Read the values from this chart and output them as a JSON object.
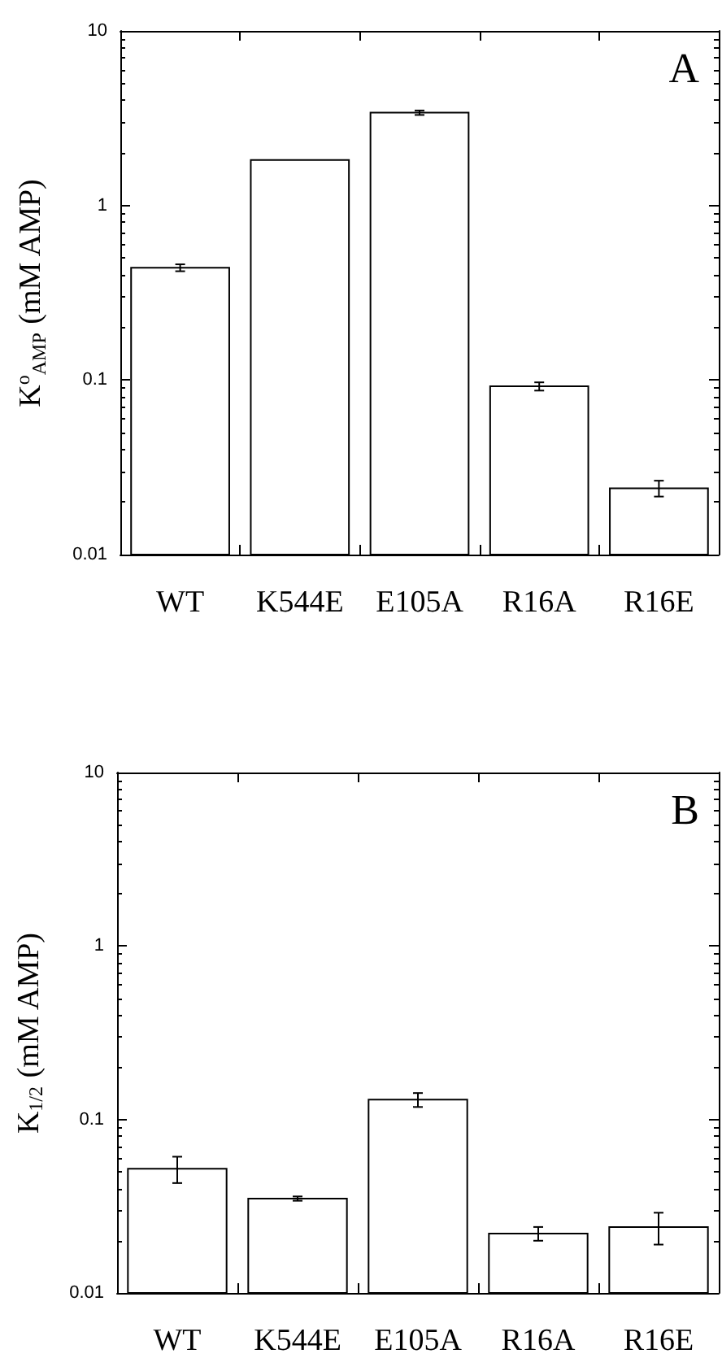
{
  "chart_data": [
    {
      "type": "bar",
      "ylabel": "K$^{o}$$_{AMP}$ (mM AMP)",
      "annotations": [
        "A"
      ],
      "categories": [
        "WT",
        "K544E",
        "E105A",
        "R16A",
        "R16E"
      ],
      "series": [
        {
          "color": "#ffffff",
          "values": [
            0.44,
            1.82,
            3.4,
            0.092,
            0.024
          ],
          "errors": [
            0.02,
            null,
            0.1,
            0.005,
            0.0025
          ]
        }
      ],
      "log": "y",
      "ylim": [
        0.01,
        10
      ],
      "yticks": [
        0.01,
        0.1,
        1,
        10
      ],
      "grid": false
    },
    {
      "type": "bar",
      "ylabel": "K$_{1/2}$ (mM AMP)",
      "annotations": [
        "B"
      ],
      "categories": [
        "WT",
        "K544E",
        "E105A",
        "R16A",
        "R16E"
      ],
      "series": [
        {
          "color": "#ffffff",
          "values": [
            0.052,
            0.035,
            0.13,
            0.022,
            0.024
          ],
          "errors": [
            0.009,
            0.001,
            0.012,
            0.002,
            0.005
          ]
        }
      ],
      "log": "y",
      "ylim": [
        0.01,
        10
      ],
      "yticks": [
        0.01,
        0.1,
        1,
        10
      ],
      "grid": false
    }
  ]
}
